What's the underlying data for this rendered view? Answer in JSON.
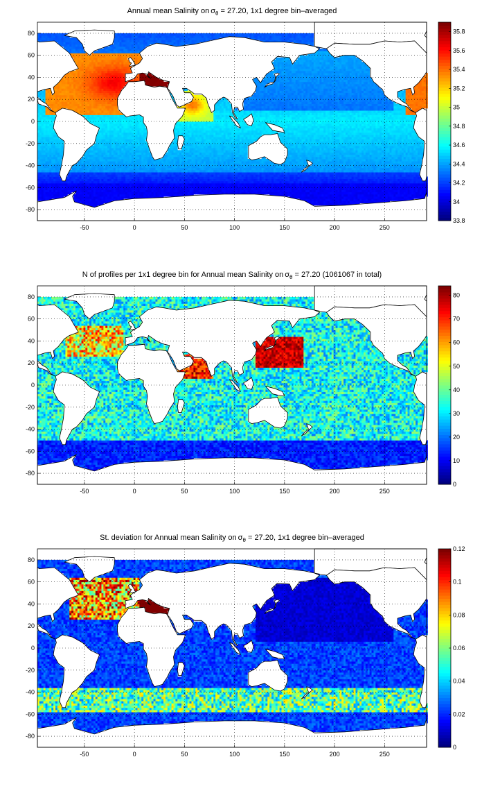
{
  "chart_data": [
    {
      "type": "heatmap",
      "title": "Annual mean Salinity on σθ = 27.20, 1x1 degree bin–averaged",
      "title_parts": {
        "pre": "Annual mean Salinity on",
        "sigma": "σ",
        "sub": "θ",
        "post": " = 27.20, 1x1 degree bin–averaged"
      },
      "x_ticks": [
        -50,
        0,
        50,
        100,
        150,
        200,
        250
      ],
      "y_ticks": [
        80,
        60,
        40,
        20,
        0,
        -20,
        -40,
        -60,
        -80
      ],
      "xlim": [
        -97,
        292
      ],
      "ylim": [
        -90,
        90
      ],
      "grid": true,
      "colorbar": {
        "min": 33.8,
        "max": 35.9,
        "ticks": [
          35.8,
          35.6,
          35.4,
          35.2,
          35,
          34.8,
          34.6,
          34.4,
          34.2,
          34,
          33.8
        ]
      },
      "colormap": "jet"
    },
    {
      "type": "heatmap",
      "title": "N of profiles per 1x1 degree bin for Annual mean Salinity on σθ = 27.20 (1061067 in total)",
      "title_parts": {
        "pre": "N of profiles per 1x1 degree bin for Annual mean Salinity on",
        "sigma": "σ",
        "sub": "θ",
        "post": " = 27.20 (1061067 in total)"
      },
      "x_ticks": [
        -50,
        0,
        50,
        100,
        150,
        200,
        250
      ],
      "y_ticks": [
        80,
        60,
        40,
        20,
        0,
        -20,
        -40,
        -60,
        -80
      ],
      "xlim": [
        -97,
        292
      ],
      "ylim": [
        -90,
        90
      ],
      "grid": true,
      "colorbar": {
        "min": 0,
        "max": 84,
        "ticks": [
          80,
          70,
          60,
          50,
          40,
          30,
          20,
          10,
          0
        ]
      },
      "colormap": "jet"
    },
    {
      "type": "heatmap",
      "title": "St. deviation for Annual mean Salinity on σθ = 27.20, 1x1 degree bin–averaged",
      "title_parts": {
        "pre": "St. deviation for Annual mean Salinity on",
        "sigma": "σ",
        "sub": "θ",
        "post": " = 27.20, 1x1 degree bin–averaged"
      },
      "x_ticks": [
        -50,
        0,
        50,
        100,
        150,
        200,
        250
      ],
      "y_ticks": [
        80,
        60,
        40,
        20,
        0,
        -20,
        -40,
        -60,
        -80
      ],
      "xlim": [
        -97,
        292
      ],
      "ylim": [
        -90,
        90
      ],
      "grid": true,
      "colorbar": {
        "min": 0,
        "max": 0.12,
        "ticks": [
          0.12,
          0.1,
          0.08,
          0.06,
          0.04,
          0.02,
          0
        ]
      },
      "colormap": "jet"
    }
  ]
}
